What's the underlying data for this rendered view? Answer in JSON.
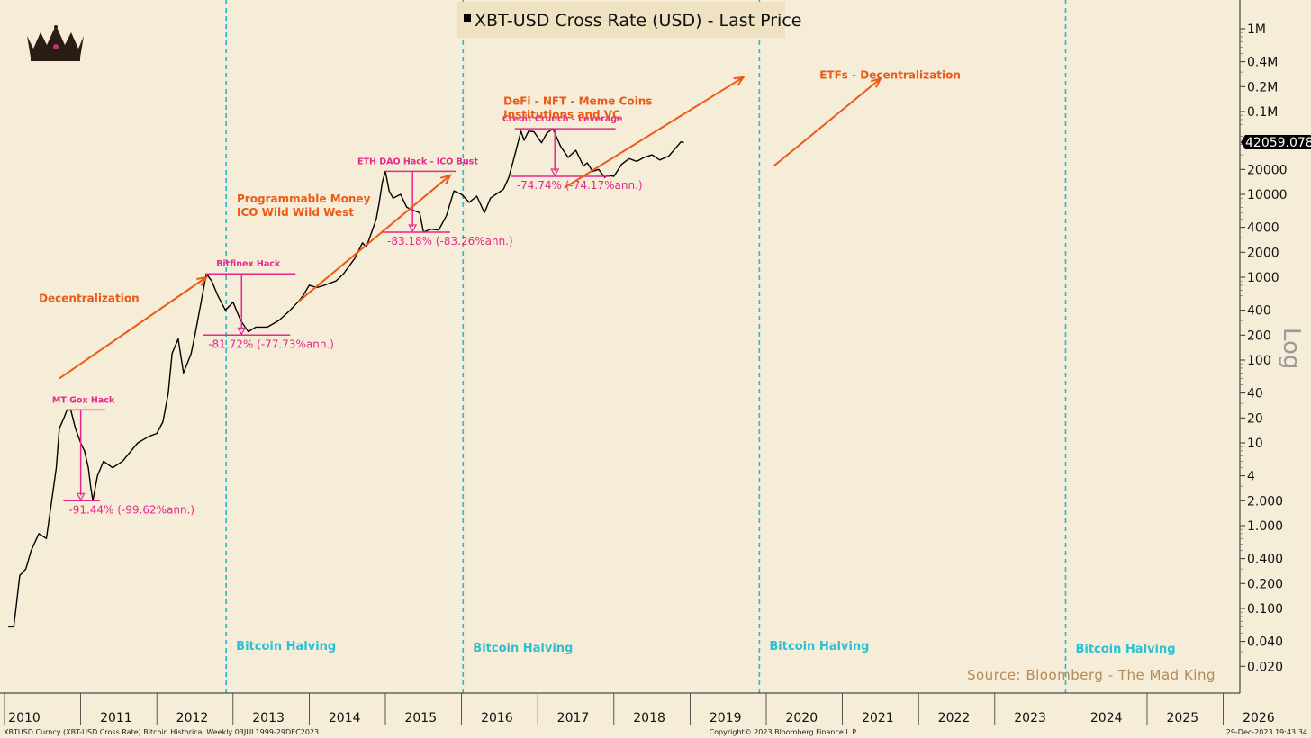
{
  "chart_data": {
    "type": "line",
    "title": "XBT-USD Cross Rate (USD) - Last Price",
    "scale": "log",
    "series": [
      {
        "name": "XBT-USD Cross Rate (USD) - Last Price",
        "color": "#000000",
        "points": [
          [
            2010.05,
            0.06
          ],
          [
            2010.12,
            0.06
          ],
          [
            2010.15,
            0.1
          ],
          [
            2010.2,
            0.25
          ],
          [
            2010.28,
            0.3
          ],
          [
            2010.35,
            0.5
          ],
          [
            2010.45,
            0.8
          ],
          [
            2010.55,
            0.7
          ],
          [
            2010.6,
            1.5
          ],
          [
            2010.68,
            5
          ],
          [
            2010.72,
            15
          ],
          [
            2010.78,
            20
          ],
          [
            2010.82,
            25
          ],
          [
            2010.87,
            25
          ],
          [
            2010.93,
            15
          ],
          [
            2011.0,
            10
          ],
          [
            2011.05,
            8
          ],
          [
            2011.1,
            5
          ],
          [
            2011.13,
            3
          ],
          [
            2011.16,
            2
          ],
          [
            2011.22,
            4
          ],
          [
            2011.3,
            6
          ],
          [
            2011.42,
            5
          ],
          [
            2011.55,
            6
          ],
          [
            2011.75,
            10
          ],
          [
            2011.9,
            12
          ],
          [
            2012.0,
            13
          ],
          [
            2012.08,
            18
          ],
          [
            2012.15,
            40
          ],
          [
            2012.2,
            120
          ],
          [
            2012.28,
            180
          ],
          [
            2012.35,
            70
          ],
          [
            2012.45,
            120
          ],
          [
            2012.5,
            200
          ],
          [
            2012.58,
            500
          ],
          [
            2012.65,
            1100
          ],
          [
            2012.72,
            900
          ],
          [
            2012.8,
            600
          ],
          [
            2012.9,
            400
          ],
          [
            2013.0,
            500
          ],
          [
            2013.1,
            300
          ],
          [
            2013.2,
            220
          ],
          [
            2013.3,
            250
          ],
          [
            2013.45,
            250
          ],
          [
            2013.6,
            300
          ],
          [
            2013.75,
            400
          ],
          [
            2013.85,
            500
          ],
          [
            2013.92,
            600
          ],
          [
            2014.0,
            800
          ],
          [
            2014.1,
            750
          ],
          [
            2014.2,
            800
          ],
          [
            2014.35,
            900
          ],
          [
            2014.45,
            1100
          ],
          [
            2014.6,
            1700
          ],
          [
            2014.7,
            2600
          ],
          [
            2014.75,
            2300
          ],
          [
            2014.82,
            3500
          ],
          [
            2014.88,
            5000
          ],
          [
            2014.92,
            8000
          ],
          [
            2014.96,
            14000
          ],
          [
            2015.0,
            19000
          ],
          [
            2015.05,
            11000
          ],
          [
            2015.1,
            9000
          ],
          [
            2015.2,
            10000
          ],
          [
            2015.28,
            7000
          ],
          [
            2015.35,
            6500
          ],
          [
            2015.45,
            6000
          ],
          [
            2015.5,
            3500
          ],
          [
            2015.6,
            3800
          ],
          [
            2015.7,
            3700
          ],
          [
            2015.8,
            5500
          ],
          [
            2015.9,
            11000
          ],
          [
            2016.0,
            10000
          ],
          [
            2016.1,
            8000
          ],
          [
            2016.2,
            9500
          ],
          [
            2016.3,
            6000
          ],
          [
            2016.38,
            9000
          ],
          [
            2016.45,
            10000
          ],
          [
            2016.55,
            11500
          ],
          [
            2016.62,
            16000
          ],
          [
            2016.7,
            30000
          ],
          [
            2016.78,
            58000
          ],
          [
            2016.82,
            45000
          ],
          [
            2016.88,
            58000
          ],
          [
            2016.95,
            57000
          ],
          [
            2017.05,
            42000
          ],
          [
            2017.12,
            55000
          ],
          [
            2017.2,
            62000
          ],
          [
            2017.3,
            38000
          ],
          [
            2017.4,
            28000
          ],
          [
            2017.5,
            34000
          ],
          [
            2017.6,
            22000
          ],
          [
            2017.65,
            24000
          ],
          [
            2017.72,
            19000
          ],
          [
            2017.8,
            20000
          ],
          [
            2017.88,
            16000
          ],
          [
            2017.92,
            17000
          ],
          [
            2018.0,
            16500
          ],
          [
            2018.1,
            23000
          ],
          [
            2018.2,
            27000
          ],
          [
            2018.3,
            25000
          ],
          [
            2018.4,
            28000
          ],
          [
            2018.5,
            30000
          ],
          [
            2018.6,
            26000
          ],
          [
            2018.72,
            29000
          ],
          [
            2018.82,
            37000
          ],
          [
            2018.88,
            43000
          ],
          [
            2018.92,
            42059
          ]
        ]
      }
    ],
    "x": {
      "ticks": [
        "2010",
        "2011",
        "2012",
        "2013",
        "2014",
        "2015",
        "2016",
        "2017",
        "2018",
        "2019",
        "2020",
        "2021",
        "2022",
        "2023",
        "2024",
        "2025",
        "2026"
      ]
    },
    "y": {
      "ticks": [
        "1M",
        "0.4M",
        "0.2M",
        "0.1M",
        "20000",
        "10000",
        "4000",
        "2000",
        "1000",
        "400",
        "200",
        "100",
        "40",
        "20",
        "10",
        "4",
        "2.000",
        "1.000",
        "0.400",
        "0.200",
        "0.100",
        "0.040",
        "0.020"
      ],
      "label": "Log"
    },
    "last_price_label": "42059.078",
    "halving_label": "Bitcoin Halving",
    "halvings": [
      2012.91,
      2016.02,
      2019.91,
      2023.93
    ],
    "drawdowns": [
      {
        "label": "MT Gox Hack",
        "peak": 25,
        "trough": 2,
        "x_start": 2010.82,
        "x_end": 2011.25,
        "pct": "-91.44% (-99.62%ann.)"
      },
      {
        "label": "Bitfinex Hack",
        "peak": 1100,
        "trough": 200,
        "x_start": 2012.65,
        "x_end": 2013.75,
        "pct": "-81.72% (-77.73%ann.)"
      },
      {
        "label": "ETH DAO Hack - ICO Bust",
        "peak": 19000,
        "trough": 3500,
        "x_start": 2015.0,
        "x_end": 2015.85,
        "pct": "-83.18% (-83.26%ann.)"
      },
      {
        "label": "Credit Crunch - Leverage",
        "peak": 62000,
        "trough": 16500,
        "x_start": 2016.7,
        "x_end": 2017.95,
        "pct": "-74.74% (-74.17%ann.)"
      }
    ],
    "themes": [
      {
        "text": [
          "Decentralization"
        ],
        "x": 2010.45,
        "y": 500,
        "color": "#ec5a16"
      },
      {
        "text": [
          "Programmable Money",
          "ICO Wild Wild West"
        ],
        "x": 2013.05,
        "y": 8000,
        "color": "#ec5a16"
      },
      {
        "text": [
          "DeFi - NFT - Meme Coins",
          "Institutions and VC"
        ],
        "x": 2016.55,
        "y": 120000,
        "color": "#ec5a16"
      },
      {
        "text": [
          "ETFs - Decentralization"
        ],
        "x": 2020.7,
        "y": 250000,
        "color": "#ec5a16"
      }
    ],
    "arrows": [
      {
        "from": [
          2010.72,
          60
        ],
        "to": [
          2012.65,
          1000
        ]
      },
      {
        "from": [
          2013.85,
          500
        ],
        "to": [
          2015.85,
          17000
        ]
      },
      {
        "from": [
          2017.35,
          12000
        ],
        "to": [
          2019.7,
          260000
        ]
      },
      {
        "from": [
          2020.1,
          22000
        ],
        "to": [
          2021.5,
          250000
        ]
      }
    ],
    "source": "Source: Bloomberg - The Mad King",
    "footer_left": "XBTUSD Curncy (XBT-USD Cross Rate) Bitcoin Historical  Weekly 03JUL1999-29DEC2023",
    "footer_center": "Copyright© 2023 Bloomberg Finance L.P.",
    "footer_right": "29-Dec-2023 19:43:34"
  }
}
